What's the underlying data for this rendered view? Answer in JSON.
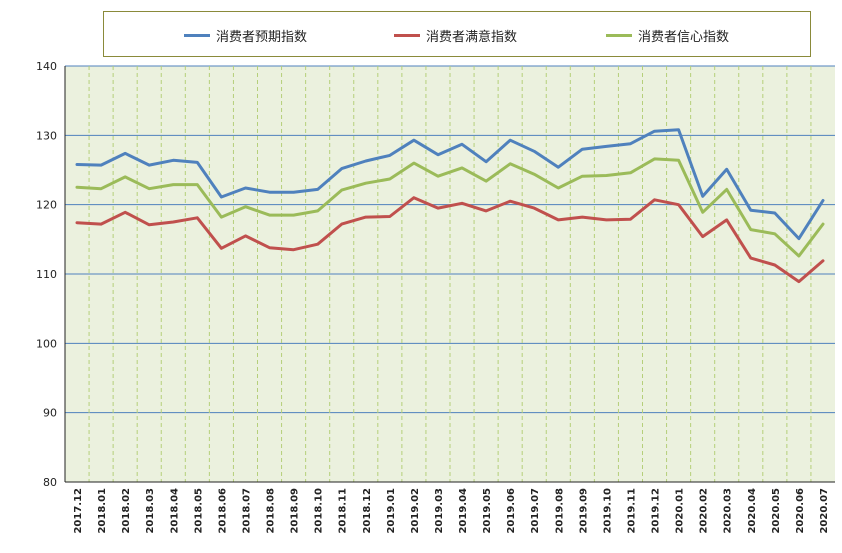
{
  "chart_data": {
    "type": "line",
    "title": "",
    "xlabel": "",
    "ylabel": "",
    "ylim": [
      80,
      140
    ],
    "yticks": [
      80,
      90,
      100,
      110,
      120,
      130,
      140
    ],
    "grid": true,
    "legend_position": "top",
    "background_color": "#ebf1de",
    "x": [
      "2017.12",
      "2018.01",
      "2018.02",
      "2018.03",
      "2018.04",
      "2018.05",
      "2018.06",
      "2018.07",
      "2018.08",
      "2018.09",
      "2018.10",
      "2018.11",
      "2018.12",
      "2019.01",
      "2019.02",
      "2019.03",
      "2019.04",
      "2019.05",
      "2019.06",
      "2019.07",
      "2019.08",
      "2019.09",
      "2019.10",
      "2019.11",
      "2019.12",
      "2020.01",
      "2020.02",
      "2020.03",
      "2020.04",
      "2020.05",
      "2020.06",
      "2020.07"
    ],
    "series": [
      {
        "name": "消费者预期指数",
        "color": "#4f81bd",
        "values": [
          125.8,
          125.7,
          127.4,
          125.7,
          126.4,
          126.1,
          121.1,
          122.4,
          121.8,
          121.8,
          122.2,
          125.2,
          126.3,
          127.1,
          129.3,
          127.2,
          128.7,
          126.2,
          129.3,
          127.7,
          125.4,
          128.0,
          128.4,
          128.8,
          130.6,
          130.8,
          121.2,
          125.1,
          119.2,
          118.8,
          115.1,
          120.6
        ]
      },
      {
        "name": "消费者满意指数",
        "color": "#c0504d",
        "values": [
          117.4,
          117.2,
          118.9,
          117.1,
          117.5,
          118.1,
          113.7,
          115.5,
          113.8,
          113.5,
          114.3,
          117.2,
          118.2,
          118.3,
          121.0,
          119.5,
          120.2,
          119.1,
          120.5,
          119.5,
          117.8,
          118.2,
          117.8,
          117.9,
          120.7,
          120.0,
          115.4,
          117.8,
          112.3,
          111.3,
          108.9,
          111.9
        ]
      },
      {
        "name": "消费者信心指数",
        "color": "#9bbb59",
        "values": [
          122.5,
          122.3,
          124.0,
          122.3,
          122.9,
          122.9,
          118.2,
          119.7,
          118.5,
          118.5,
          119.1,
          122.1,
          123.1,
          123.7,
          126.0,
          124.1,
          125.3,
          123.4,
          125.9,
          124.4,
          122.4,
          124.1,
          124.2,
          124.6,
          126.6,
          126.4,
          118.9,
          122.2,
          116.4,
          115.8,
          112.6,
          117.2
        ]
      }
    ]
  }
}
